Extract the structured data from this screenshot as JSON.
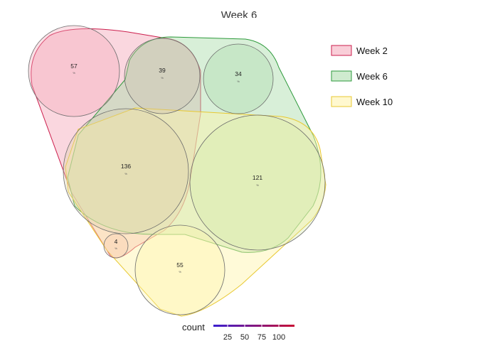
{
  "chart_data": {
    "type": "euler",
    "title": "Week 6",
    "sets": [
      {
        "name": "Week 2",
        "fill": "#f4a6b8",
        "stroke": "#cc1f4e"
      },
      {
        "name": "Week 6",
        "fill": "#a8dba8",
        "stroke": "#2e9a3c"
      },
      {
        "name": "Week 10",
        "fill": "#fff3a8",
        "stroke": "#e8c830"
      }
    ],
    "regions": [
      {
        "sets": [
          "Week 2"
        ],
        "count": "57",
        "percent": "%"
      },
      {
        "sets": [
          "Week 2",
          "Week 6"
        ],
        "count": "39",
        "percent": "%"
      },
      {
        "sets": [
          "Week 6"
        ],
        "count": "34",
        "percent": "%"
      },
      {
        "sets": [
          "Week 2",
          "Week 6",
          "Week 10"
        ],
        "count": "136",
        "percent": "%"
      },
      {
        "sets": [
          "Week 6",
          "Week 10"
        ],
        "count": "121",
        "percent": "%"
      },
      {
        "sets": [
          "Week 2",
          "Week 10"
        ],
        "count": "4",
        "percent": "%"
      },
      {
        "sets": [
          "Week 10"
        ],
        "count": "55",
        "percent": "%"
      }
    ],
    "colorbar": {
      "title": "count",
      "ticks": [
        "25",
        "50",
        "75",
        "100"
      ],
      "colors": [
        "#3b1fd0",
        "#c81035"
      ]
    }
  }
}
